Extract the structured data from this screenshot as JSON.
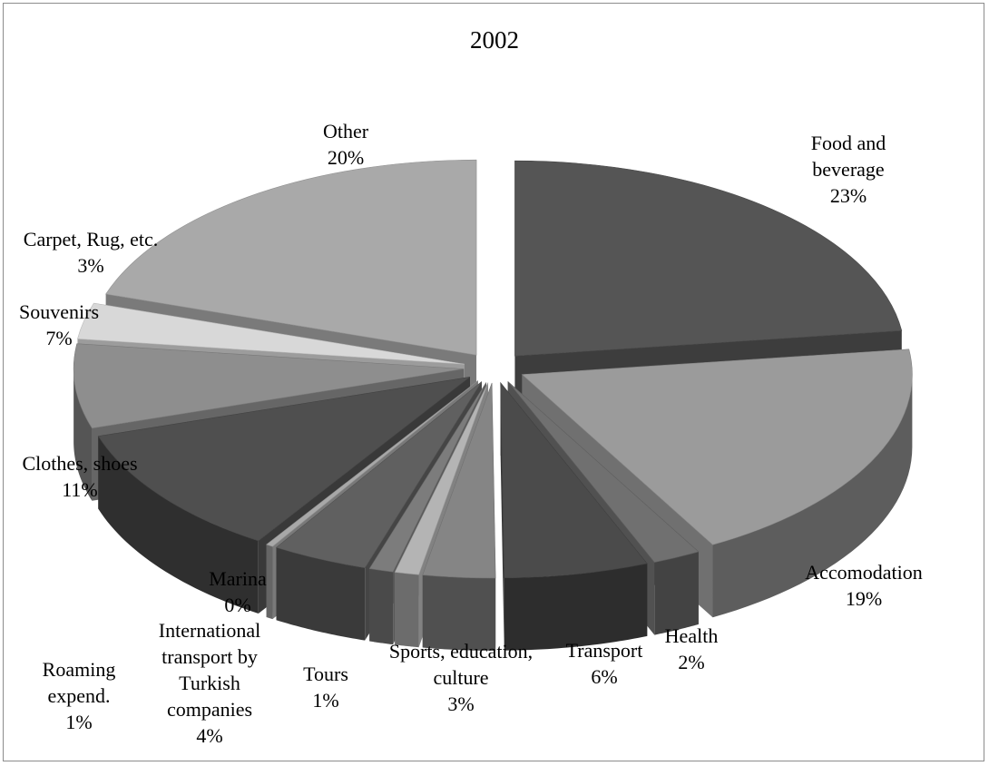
{
  "chart_data": {
    "type": "pie",
    "style": "3d-exploded",
    "title": "2002",
    "slices": [
      {
        "label": "Food and beverage",
        "value": 23,
        "pct": "23%",
        "color": "#555555"
      },
      {
        "label": "Accomodation",
        "value": 19,
        "pct": "19%",
        "color": "#9b9b9b"
      },
      {
        "label": "Health",
        "value": 2,
        "pct": "2%",
        "color": "#707070"
      },
      {
        "label": "Transport",
        "value": 6,
        "pct": "6%",
        "color": "#4b4b4b"
      },
      {
        "label": "Sports, education, culture",
        "value": 3,
        "pct": "3%",
        "color": "#858585"
      },
      {
        "label": "Roaming expend.",
        "value": 1,
        "pct": "1%",
        "color": "#b4b4b4"
      },
      {
        "label": "Tours",
        "value": 1,
        "pct": "1%",
        "color": "#7c7c7c"
      },
      {
        "label": "International transport by Turkish companies",
        "value": 4,
        "pct": "4%",
        "color": "#606060"
      },
      {
        "label": "Marina",
        "value": 0,
        "pct": "0%",
        "color": "#a8a8a8"
      },
      {
        "label": "Clothes, shoes",
        "value": 11,
        "pct": "11%",
        "color": "#4f4f4f"
      },
      {
        "label": "Souvenirs",
        "value": 7,
        "pct": "7%",
        "color": "#8e8e8e"
      },
      {
        "label": "Carpet, Rug, etc.",
        "value": 3,
        "pct": "3%",
        "color": "#d8d8d8"
      },
      {
        "label": "Other",
        "value": 20,
        "pct": "20%",
        "color": "#a9a9a9"
      }
    ]
  }
}
